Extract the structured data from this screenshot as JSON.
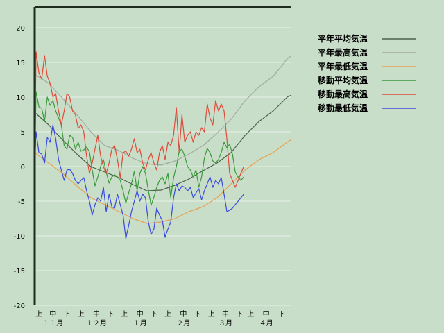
{
  "chart_data": {
    "type": "line",
    "title": "",
    "xlabel": "",
    "ylabel": "",
    "ylim": [
      -20,
      23
    ],
    "y_ticks": [
      20,
      15,
      10,
      5,
      0,
      -5,
      -10,
      -15,
      -20
    ],
    "x_range_days": [
      0,
      183
    ],
    "grid": "horizontal",
    "legend_position": "right",
    "period_labels": [
      {
        "day": 3,
        "label": "上"
      },
      {
        "day": 13,
        "label": "中"
      },
      {
        "day": 23,
        "label": "下"
      },
      {
        "day": 33,
        "label": "上"
      },
      {
        "day": 44,
        "label": "中"
      },
      {
        "day": 54,
        "label": "下"
      },
      {
        "day": 64,
        "label": "上"
      },
      {
        "day": 75,
        "label": "中"
      },
      {
        "day": 85,
        "label": "下"
      },
      {
        "day": 95,
        "label": "上"
      },
      {
        "day": 106,
        "label": "中"
      },
      {
        "day": 116,
        "label": "下"
      },
      {
        "day": 126,
        "label": "上"
      },
      {
        "day": 136,
        "label": "中"
      },
      {
        "day": 146,
        "label": "下"
      },
      {
        "day": 154,
        "label": "上"
      },
      {
        "day": 165,
        "label": "中"
      },
      {
        "day": 176,
        "label": "下"
      }
    ],
    "month_labels": [
      {
        "day": 13,
        "label": "１１月"
      },
      {
        "day": 44,
        "label": "１２月"
      },
      {
        "day": 75,
        "label": "１月"
      },
      {
        "day": 106,
        "label": "２月"
      },
      {
        "day": 136,
        "label": "３月"
      },
      {
        "day": 165,
        "label": "４月"
      }
    ],
    "series": [
      {
        "name": "平年平均気温",
        "color": "#4a604a",
        "x": [
          0,
          10,
          20,
          30,
          40,
          50,
          60,
          70,
          80,
          90,
          100,
          110,
          120,
          130,
          140,
          150,
          160,
          170,
          180,
          183
        ],
        "values": [
          7.8,
          6.0,
          3.8,
          1.8,
          0.0,
          -0.8,
          -1.6,
          -2.6,
          -3.5,
          -3.4,
          -2.7,
          -1.8,
          -0.6,
          0.5,
          2.0,
          4.5,
          6.5,
          8.0,
          10.0,
          10.3
        ]
      },
      {
        "name": "平年最高気温",
        "color": "#a0aaa0",
        "x": [
          0,
          10,
          20,
          30,
          40,
          50,
          60,
          70,
          80,
          90,
          100,
          110,
          120,
          130,
          140,
          150,
          160,
          170,
          180,
          183
        ],
        "values": [
          13.3,
          12.0,
          9.8,
          7.5,
          5.0,
          3.0,
          2.3,
          1.2,
          0.4,
          0.2,
          0.8,
          1.8,
          3.0,
          4.8,
          6.8,
          9.5,
          11.5,
          13.0,
          15.5,
          16.0
        ]
      },
      {
        "name": "平年最低気温",
        "color": "#e8a050",
        "x": [
          0,
          10,
          20,
          30,
          40,
          50,
          60,
          70,
          80,
          90,
          100,
          110,
          120,
          130,
          140,
          150,
          160,
          170,
          180,
          183
        ],
        "values": [
          2.0,
          0.5,
          -1.0,
          -2.8,
          -4.5,
          -5.5,
          -6.5,
          -7.5,
          -8.2,
          -8.0,
          -7.5,
          -6.5,
          -5.8,
          -4.5,
          -2.5,
          -0.5,
          1.0,
          2.0,
          3.5,
          3.9
        ]
      },
      {
        "name": "移動平均気温",
        "color": "#3a9a3a",
        "x": [
          0,
          1,
          3,
          5,
          7,
          9,
          11,
          13,
          15,
          17,
          19,
          21,
          23,
          25,
          27,
          29,
          31,
          33,
          35,
          37,
          39,
          41,
          43,
          45,
          47,
          49,
          51,
          53,
          55,
          57,
          59,
          61,
          63,
          65,
          67,
          69,
          71,
          73,
          75,
          77,
          79,
          81,
          83,
          85,
          87,
          89,
          91,
          93,
          95,
          97,
          99,
          101,
          103,
          105,
          107,
          109,
          111,
          113,
          115,
          117,
          119,
          121,
          123,
          125,
          127,
          129,
          131,
          133,
          135,
          137,
          139,
          141,
          143,
          145,
          147,
          149
        ],
        "values": [
          0,
          10.8,
          8.6,
          8.4,
          6.5,
          10,
          8.8,
          9.5,
          8,
          7,
          6,
          3,
          2.5,
          4.5,
          4.2,
          2.5,
          3.5,
          2.2,
          2.4,
          2.8,
          2.1,
          -0.5,
          -2.8,
          -1.5,
          0,
          1,
          -0.8,
          -2.4,
          -1.5,
          -1.2,
          -1.5,
          -2,
          -3.5,
          -5.3,
          -3.8,
          -2.5,
          -0.7,
          -3.5,
          -1,
          0,
          -1,
          -3.4,
          -5.6,
          -4.4,
          -3,
          -2,
          -1.5,
          -2.5,
          -1,
          -4.5,
          -1.6,
          0,
          2.2,
          2.5,
          1.5,
          0,
          -0.5,
          -1.5,
          -0.5,
          -3,
          -1.5,
          1.2,
          2.6,
          2,
          0.8,
          0.5,
          1,
          2,
          3.5,
          2.7,
          3.2,
          1.8,
          -0.8,
          -1.5,
          -2,
          -1.5
        ]
      },
      {
        "name": "移動最高気温",
        "color": "#e04a3a",
        "x": [
          0,
          1,
          3,
          5,
          7,
          9,
          11,
          13,
          15,
          17,
          19,
          21,
          23,
          25,
          27,
          29,
          31,
          33,
          35,
          37,
          39,
          41,
          43,
          45,
          47,
          49,
          51,
          53,
          55,
          57,
          59,
          61,
          63,
          65,
          67,
          69,
          71,
          73,
          75,
          77,
          79,
          81,
          83,
          85,
          87,
          89,
          91,
          93,
          95,
          97,
          99,
          101,
          103,
          105,
          107,
          109,
          111,
          113,
          115,
          117,
          119,
          121,
          123,
          125,
          127,
          129,
          131,
          133,
          135,
          137,
          139,
          141,
          143,
          145,
          147,
          149
        ],
        "values": [
          0,
          16.5,
          13.5,
          12.6,
          16,
          13,
          12,
          10,
          10.5,
          8,
          6,
          8,
          10.5,
          10,
          8,
          7.5,
          5.5,
          6,
          5,
          1.5,
          -1,
          0.5,
          2.5,
          4.5,
          1.5,
          0,
          -1,
          0.5,
          2.5,
          3,
          1,
          -1.6,
          2,
          2.2,
          1.5,
          2.5,
          4,
          2,
          2.5,
          0.5,
          -0.5,
          1,
          2,
          0.5,
          -0.5,
          2,
          3,
          1,
          3.5,
          3,
          4.5,
          8.5,
          2,
          7.5,
          3.5,
          4.5,
          5,
          3.5,
          5,
          4.5,
          5.6,
          5,
          9,
          7,
          6,
          9.5,
          8,
          9,
          8,
          4,
          -1,
          -2,
          -3,
          -2,
          -1,
          0
        ]
      },
      {
        "name": "移動最低気温",
        "color": "#3a4ae0",
        "x": [
          0,
          1,
          3,
          5,
          7,
          9,
          11,
          13,
          15,
          17,
          19,
          21,
          23,
          25,
          27,
          29,
          31,
          33,
          35,
          37,
          39,
          41,
          43,
          45,
          47,
          49,
          51,
          53,
          55,
          57,
          59,
          61,
          63,
          65,
          67,
          69,
          71,
          73,
          75,
          77,
          79,
          81,
          83,
          85,
          87,
          89,
          91,
          93,
          95,
          97,
          99,
          101,
          103,
          105,
          107,
          109,
          111,
          113,
          115,
          117,
          119,
          121,
          123,
          125,
          127,
          129,
          131,
          133,
          135,
          137,
          139,
          141,
          143,
          145,
          147,
          149
        ],
        "values": [
          0,
          5,
          2,
          1.8,
          0.5,
          4.2,
          3.5,
          6,
          4,
          1,
          -0.5,
          -2,
          -0.5,
          -0.4,
          -1,
          -2,
          -2.5,
          -2,
          -1.6,
          -3.5,
          -5,
          -7,
          -5.5,
          -4.5,
          -5,
          -3,
          -6.5,
          -4,
          -5.8,
          -6,
          -4,
          -5.5,
          -7,
          -10.4,
          -8.5,
          -6.5,
          -5,
          -3.5,
          -5,
          -4,
          -4.5,
          -8,
          -9.8,
          -9,
          -6,
          -7,
          -7.8,
          -10.2,
          -9,
          -8,
          -4.5,
          -2.5,
          -3.5,
          -2.8,
          -3,
          -3.5,
          -3,
          -4.5,
          -3.8,
          -3.2,
          -4.8,
          -3.5,
          -2.5,
          -1.5,
          -3,
          -2,
          -2.5,
          -1.6,
          -4,
          -6.5,
          -6.3,
          -6,
          -5.5,
          -5,
          -4.5,
          -4
        ]
      }
    ]
  }
}
